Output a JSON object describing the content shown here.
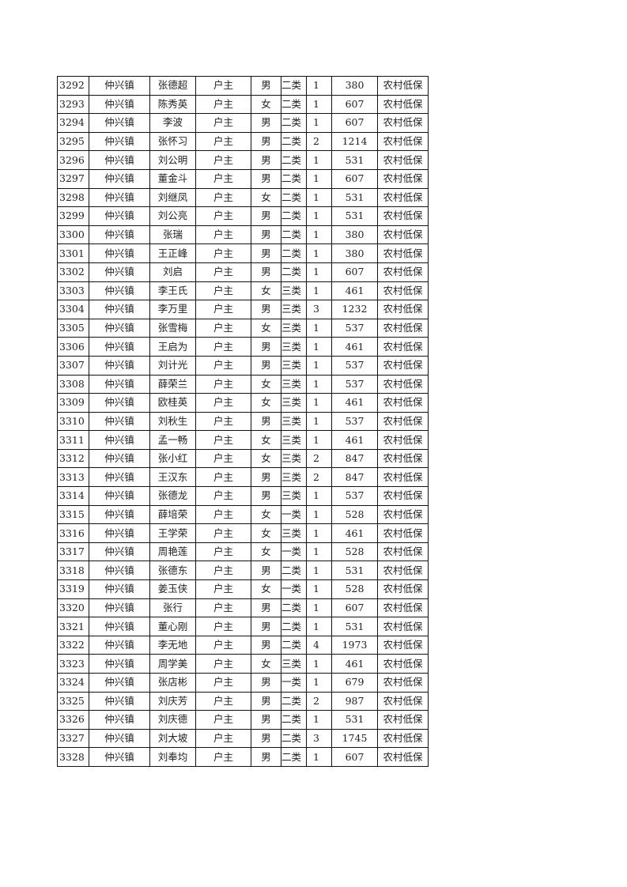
{
  "table": {
    "rows": [
      [
        "3292",
        "仲兴镇",
        "张德超",
        "户主",
        "男",
        "二类",
        "1",
        "380",
        "农村低保"
      ],
      [
        "3293",
        "仲兴镇",
        "陈秀英",
        "户主",
        "女",
        "二类",
        "1",
        "607",
        "农村低保"
      ],
      [
        "3294",
        "仲兴镇",
        "李波",
        "户主",
        "男",
        "二类",
        "1",
        "607",
        "农村低保"
      ],
      [
        "3295",
        "仲兴镇",
        "张怀习",
        "户主",
        "男",
        "二类",
        "2",
        "1214",
        "农村低保"
      ],
      [
        "3296",
        "仲兴镇",
        "刘公明",
        "户主",
        "男",
        "二类",
        "1",
        "531",
        "农村低保"
      ],
      [
        "3297",
        "仲兴镇",
        "董金斗",
        "户主",
        "男",
        "二类",
        "1",
        "607",
        "农村低保"
      ],
      [
        "3298",
        "仲兴镇",
        "刘继凤",
        "户主",
        "女",
        "二类",
        "1",
        "531",
        "农村低保"
      ],
      [
        "3299",
        "仲兴镇",
        "刘公亮",
        "户主",
        "男",
        "二类",
        "1",
        "531",
        "农村低保"
      ],
      [
        "3300",
        "仲兴镇",
        "张瑞",
        "户主",
        "男",
        "二类",
        "1",
        "380",
        "农村低保"
      ],
      [
        "3301",
        "仲兴镇",
        "王正峰",
        "户主",
        "男",
        "二类",
        "1",
        "380",
        "农村低保"
      ],
      [
        "3302",
        "仲兴镇",
        "刘启",
        "户主",
        "男",
        "二类",
        "1",
        "607",
        "农村低保"
      ],
      [
        "3303",
        "仲兴镇",
        "李王氏",
        "户主",
        "女",
        "三类",
        "1",
        "461",
        "农村低保"
      ],
      [
        "3304",
        "仲兴镇",
        "李万里",
        "户主",
        "男",
        "三类",
        "3",
        "1232",
        "农村低保"
      ],
      [
        "3305",
        "仲兴镇",
        "张雪梅",
        "户主",
        "女",
        "三类",
        "1",
        "537",
        "农村低保"
      ],
      [
        "3306",
        "仲兴镇",
        "王启为",
        "户主",
        "男",
        "三类",
        "1",
        "461",
        "农村低保"
      ],
      [
        "3307",
        "仲兴镇",
        "刘计光",
        "户主",
        "男",
        "三类",
        "1",
        "537",
        "农村低保"
      ],
      [
        "3308",
        "仲兴镇",
        "薛荣兰",
        "户主",
        "女",
        "三类",
        "1",
        "537",
        "农村低保"
      ],
      [
        "3309",
        "仲兴镇",
        "欧桂英",
        "户主",
        "女",
        "三类",
        "1",
        "461",
        "农村低保"
      ],
      [
        "3310",
        "仲兴镇",
        "刘秋生",
        "户主",
        "男",
        "三类",
        "1",
        "537",
        "农村低保"
      ],
      [
        "3311",
        "仲兴镇",
        "孟一畅",
        "户主",
        "女",
        "三类",
        "1",
        "461",
        "农村低保"
      ],
      [
        "3312",
        "仲兴镇",
        "张小红",
        "户主",
        "女",
        "三类",
        "2",
        "847",
        "农村低保"
      ],
      [
        "3313",
        "仲兴镇",
        "王汉东",
        "户主",
        "男",
        "三类",
        "2",
        "847",
        "农村低保"
      ],
      [
        "3314",
        "仲兴镇",
        "张德龙",
        "户主",
        "男",
        "三类",
        "1",
        "537",
        "农村低保"
      ],
      [
        "3315",
        "仲兴镇",
        "薛培荣",
        "户主",
        "女",
        "一类",
        "1",
        "528",
        "农村低保"
      ],
      [
        "3316",
        "仲兴镇",
        "王学荣",
        "户主",
        "女",
        "三类",
        "1",
        "461",
        "农村低保"
      ],
      [
        "3317",
        "仲兴镇",
        "周艳莲",
        "户主",
        "女",
        "一类",
        "1",
        "528",
        "农村低保"
      ],
      [
        "3318",
        "仲兴镇",
        "张德东",
        "户主",
        "男",
        "二类",
        "1",
        "531",
        "农村低保"
      ],
      [
        "3319",
        "仲兴镇",
        "姜玉侠",
        "户主",
        "女",
        "一类",
        "1",
        "528",
        "农村低保"
      ],
      [
        "3320",
        "仲兴镇",
        "张行",
        "户主",
        "男",
        "二类",
        "1",
        "607",
        "农村低保"
      ],
      [
        "3321",
        "仲兴镇",
        "董心刚",
        "户主",
        "男",
        "二类",
        "1",
        "531",
        "农村低保"
      ],
      [
        "3322",
        "仲兴镇",
        "李无地",
        "户主",
        "男",
        "二类",
        "4",
        "1973",
        "农村低保"
      ],
      [
        "3323",
        "仲兴镇",
        "周学美",
        "户主",
        "女",
        "三类",
        "1",
        "461",
        "农村低保"
      ],
      [
        "3324",
        "仲兴镇",
        "张店彬",
        "户主",
        "男",
        "一类",
        "1",
        "679",
        "农村低保"
      ],
      [
        "3325",
        "仲兴镇",
        "刘庆芳",
        "户主",
        "男",
        "二类",
        "2",
        "987",
        "农村低保"
      ],
      [
        "3326",
        "仲兴镇",
        "刘庆德",
        "户主",
        "男",
        "二类",
        "1",
        "531",
        "农村低保"
      ],
      [
        "3327",
        "仲兴镇",
        "刘大坡",
        "户主",
        "男",
        "二类",
        "3",
        "1745",
        "农村低保"
      ],
      [
        "3328",
        "仲兴镇",
        "刘奉均",
        "户主",
        "男",
        "二类",
        "1",
        "607",
        "农村低保"
      ]
    ]
  }
}
